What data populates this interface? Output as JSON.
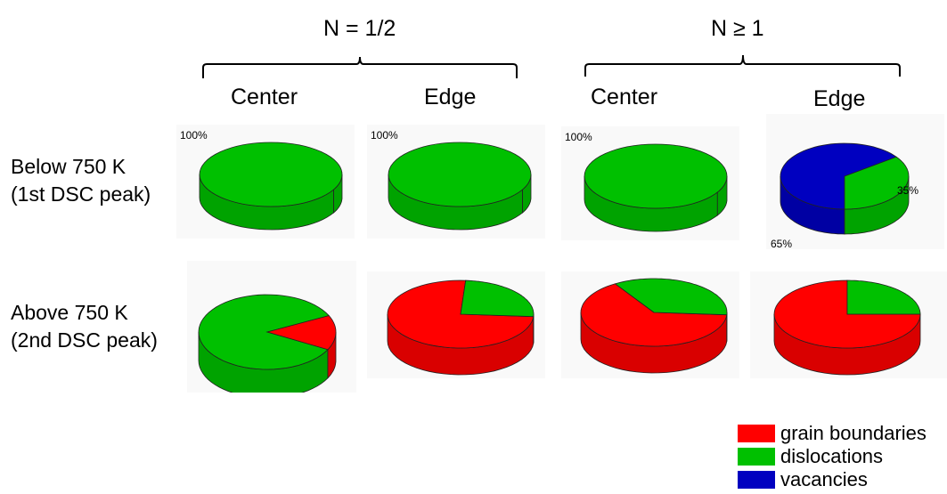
{
  "colors": {
    "grain_boundaries": "#ff0000",
    "dislocations": "#00c000",
    "vacancies": "#0000c0"
  },
  "groups": [
    {
      "label": "N = 1/2"
    },
    {
      "label": "N ≥ 1"
    }
  ],
  "columns": [
    "Center",
    "Edge",
    "Center",
    "Edge"
  ],
  "rows": [
    {
      "line1": "Below 750 K",
      "line2": "(1st DSC peak)"
    },
    {
      "line1": "Above 750 K",
      "line2": "(2nd DSC peak)"
    }
  ],
  "legend": [
    {
      "label": "grain boundaries",
      "key": "grain_boundaries"
    },
    {
      "label": "dislocations",
      "key": "dislocations"
    },
    {
      "label": "vacancies",
      "key": "vacancies"
    }
  ],
  "chart_data": {
    "type": "pie",
    "series_order": [
      "grain boundaries",
      "dislocations",
      "vacancies"
    ],
    "pies": [
      {
        "group": "N = 1/2",
        "position": "Center",
        "row": "Below 750 K (1st DSC peak)",
        "slices": [
          {
            "key": "dislocations",
            "value": 100,
            "label": "100%"
          }
        ]
      },
      {
        "group": "N = 1/2",
        "position": "Edge",
        "row": "Below 750 K (1st DSC peak)",
        "slices": [
          {
            "key": "dislocations",
            "value": 100,
            "label": "100%"
          }
        ]
      },
      {
        "group": "N ≥ 1",
        "position": "Center",
        "row": "Below 750 K (1st DSC peak)",
        "slices": [
          {
            "key": "dislocations",
            "value": 100,
            "label": "100%"
          }
        ]
      },
      {
        "group": "N ≥ 1",
        "position": "Edge",
        "row": "Below 750 K (1st DSC peak)",
        "slices": [
          {
            "key": "vacancies",
            "value": 65,
            "label": "65%"
          },
          {
            "key": "dislocations",
            "value": 35,
            "label": "35%"
          }
        ]
      },
      {
        "group": "N = 1/2",
        "position": "Center",
        "row": "Above 750 K (2nd DSC peak)",
        "slices": [
          {
            "key": "dislocations",
            "value": 85,
            "label": "85%"
          },
          {
            "key": "grain_boundaries",
            "value": 15,
            "label": "15%"
          }
        ]
      },
      {
        "group": "N = 1/2",
        "position": "Edge",
        "row": "Above 750 K (2nd DSC peak)",
        "slices": [
          {
            "key": "grain_boundaries",
            "value": 75,
            "label": "75%"
          },
          {
            "key": "dislocations",
            "value": 25,
            "label": "25%"
          }
        ]
      },
      {
        "group": "N ≥ 1",
        "position": "Center",
        "row": "Above 750 K (2nd DSC peak)",
        "slices": [
          {
            "key": "grain_boundaries",
            "value": 65,
            "label": "65%"
          },
          {
            "key": "dislocations",
            "value": 35,
            "label": "35%"
          }
        ]
      },
      {
        "group": "N ≥ 1",
        "position": "Edge",
        "row": "Above 750 K (2nd DSC peak)",
        "slices": [
          {
            "key": "grain_boundaries",
            "value": 75,
            "label": "75%"
          },
          {
            "key": "dislocations",
            "value": 25,
            "label": "25%"
          }
        ]
      }
    ]
  }
}
